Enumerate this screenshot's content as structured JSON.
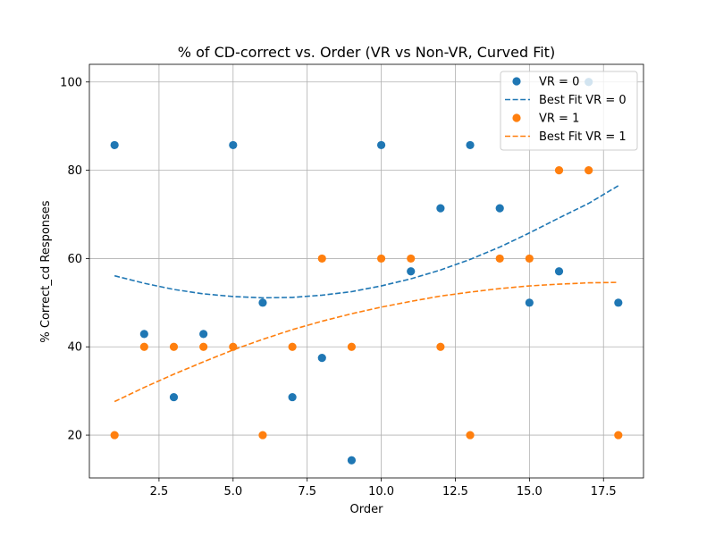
{
  "chart_data": {
    "type": "scatter",
    "title": "% of CD-correct vs. Order (VR vs Non-VR, Curved Fit)",
    "xlabel": "Order",
    "ylabel": "% Correct_cd Responses",
    "xlim": [
      0.15,
      18.85
    ],
    "ylim": [
      10.3,
      104.0
    ],
    "xticks": [
      2.5,
      5.0,
      7.5,
      10.0,
      12.5,
      15.0,
      17.5
    ],
    "xtick_labels": [
      "2.5",
      "5.0",
      "7.5",
      "10.0",
      "12.5",
      "15.0",
      "17.5"
    ],
    "yticks": [
      20,
      40,
      60,
      80,
      100
    ],
    "ytick_labels": [
      "20",
      "40",
      "60",
      "80",
      "100"
    ],
    "grid": true,
    "legend_position": "top-right",
    "series": [
      {
        "name": "VR = 0",
        "kind": "scatter",
        "color": "#1f77b4",
        "points": [
          [
            1,
            85.7
          ],
          [
            2,
            42.9
          ],
          [
            3,
            28.6
          ],
          [
            4,
            42.9
          ],
          [
            5,
            85.7
          ],
          [
            6,
            50.0
          ],
          [
            7,
            28.6
          ],
          [
            8,
            37.5
          ],
          [
            9,
            14.3
          ],
          [
            10,
            85.7
          ],
          [
            11,
            57.1
          ],
          [
            12,
            71.4
          ],
          [
            13,
            85.7
          ],
          [
            14,
            71.4
          ],
          [
            15,
            50.0
          ],
          [
            16,
            57.1
          ],
          [
            17,
            100.0
          ],
          [
            18,
            50.0
          ]
        ]
      },
      {
        "name": "Best Fit VR = 0",
        "kind": "curve",
        "color": "#1f77b4",
        "points": [
          [
            1,
            56.1
          ],
          [
            2,
            54.4
          ],
          [
            3,
            53.0
          ],
          [
            4,
            52.0
          ],
          [
            5,
            51.4
          ],
          [
            6,
            51.1
          ],
          [
            7,
            51.2
          ],
          [
            8,
            51.7
          ],
          [
            9,
            52.5
          ],
          [
            10,
            53.8
          ],
          [
            11,
            55.4
          ],
          [
            12,
            57.4
          ],
          [
            13,
            59.8
          ],
          [
            14,
            62.6
          ],
          [
            15,
            65.8
          ],
          [
            16,
            69.2
          ],
          [
            17,
            72.5
          ],
          [
            18,
            76.5
          ]
        ]
      },
      {
        "name": "VR = 1",
        "kind": "scatter",
        "color": "#ff7f0e",
        "points": [
          [
            1,
            20
          ],
          [
            2,
            40
          ],
          [
            3,
            40
          ],
          [
            4,
            40
          ],
          [
            5,
            40
          ],
          [
            6,
            20
          ],
          [
            7,
            40
          ],
          [
            8,
            60
          ],
          [
            9,
            40
          ],
          [
            10,
            60
          ],
          [
            11,
            60
          ],
          [
            12,
            40
          ],
          [
            13,
            20
          ],
          [
            14,
            60
          ],
          [
            15,
            60
          ],
          [
            16,
            80
          ],
          [
            17,
            80
          ],
          [
            18,
            20
          ]
        ]
      },
      {
        "name": "Best Fit VR = 1",
        "kind": "curve",
        "color": "#ff7f0e",
        "points": [
          [
            1,
            27.6
          ],
          [
            2,
            30.8
          ],
          [
            3,
            33.8
          ],
          [
            4,
            36.6
          ],
          [
            5,
            39.3
          ],
          [
            6,
            41.7
          ],
          [
            7,
            43.9
          ],
          [
            8,
            45.8
          ],
          [
            9,
            47.5
          ],
          [
            10,
            49.0
          ],
          [
            11,
            50.3
          ],
          [
            12,
            51.5
          ],
          [
            13,
            52.4
          ],
          [
            14,
            53.2
          ],
          [
            15,
            53.8
          ],
          [
            16,
            54.2
          ],
          [
            17,
            54.5
          ],
          [
            18,
            54.6
          ]
        ]
      }
    ]
  }
}
